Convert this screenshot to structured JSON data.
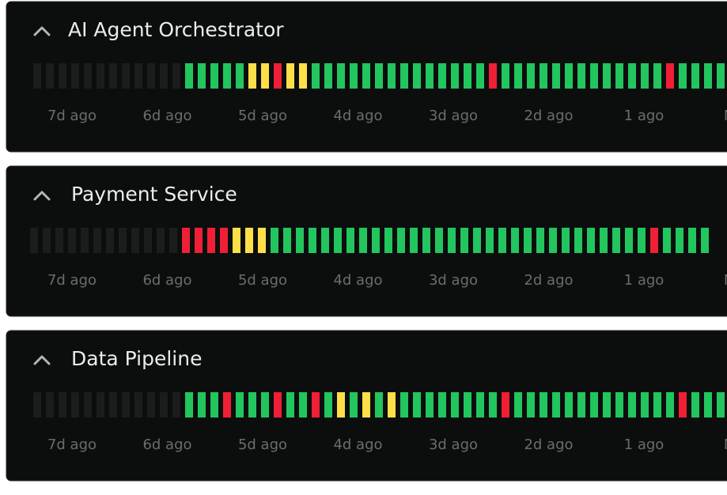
{
  "status_colors": {
    "n": "#1b1d1d",
    "g": "#22c55e",
    "y": "#fde047",
    "r": "#ef1f35"
  },
  "panels": [
    {
      "title": "AI Agent Orchestrator",
      "bars": "nnnnnnnnnnnngggggyyryyggggggggggggggrgggggggggggggrgggg",
      "time_labels": [
        "7d ago",
        "6d ago",
        "5d ago",
        "4d ago",
        "3d ago",
        "2d ago",
        "1 ago",
        "Now"
      ]
    },
    {
      "title": "Payment Service",
      "bars": "nnnnnnnnnnnnrrrryyyggggggggggggggggggggggggggggggrgggg",
      "time_labels": [
        "7d ago",
        "6d ago",
        "5d ago",
        "4d ago",
        "3d ago",
        "2d ago",
        "1 ago",
        "Now"
      ]
    },
    {
      "title": "Data Pipeline",
      "bars": "nnnnnnnnnnnngggrgggrggrgygygyggggggggrgggggggggggggrgggg",
      "time_labels": [
        "7d ago",
        "6d ago",
        "5d ago",
        "4d ago",
        "3d ago",
        "2d ago",
        "1 ago",
        "Now"
      ]
    }
  ]
}
